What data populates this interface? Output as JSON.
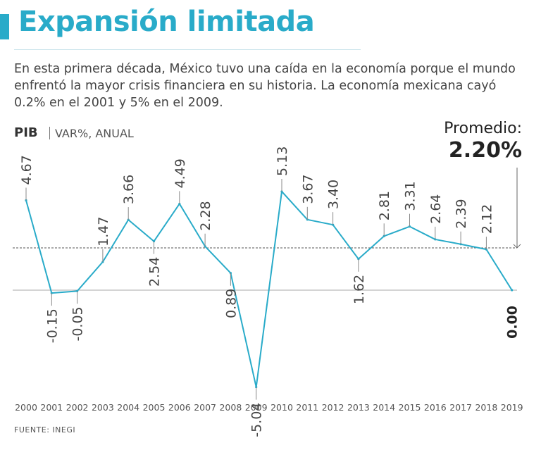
{
  "header": {
    "title": "Expansión limitada",
    "subtitle": "En esta primera década, México tuvo una caída en la economía porque el mundo enfrentó la mayor crisis financiera en su historia. La economía mexicana cayó 0.2% en el 2001 y 5% en el 2009."
  },
  "indicator": {
    "name": "PIB",
    "unit": "VAR%, ANUAL"
  },
  "average": {
    "label": "Promedio:",
    "value_text": "2.20%"
  },
  "source": "FUENTE: INEGI",
  "colors": {
    "accent": "#29abc9",
    "line": "#29abc9",
    "text": "#333333"
  },
  "chart_data": {
    "type": "line",
    "title": "Expansión limitada",
    "ylabel": "VAR%, ANUAL",
    "categories": [
      "2000",
      "2001",
      "2002",
      "2003",
      "2004",
      "2005",
      "2006",
      "2007",
      "2008",
      "2009",
      "2010",
      "2011",
      "2012",
      "2013",
      "2014",
      "2015",
      "2016",
      "2017",
      "2018",
      "2019"
    ],
    "values": [
      4.67,
      -0.15,
      -0.05,
      1.47,
      3.66,
      2.54,
      4.49,
      2.28,
      0.89,
      -5.04,
      5.13,
      3.67,
      3.4,
      1.62,
      2.81,
      3.31,
      2.64,
      2.39,
      2.12,
      0.0
    ],
    "labels": [
      "4.67",
      "-0.15",
      "-0.05",
      "1.47",
      "3.66",
      "2.54",
      "4.49",
      "2.28",
      "0.89",
      "-5.04",
      "5.13",
      "3.67",
      "3.40",
      "1.62",
      "2.81",
      "3.31",
      "2.64",
      "2.39",
      "2.12",
      "0.00"
    ],
    "label_position": [
      "above",
      "below",
      "below",
      "above",
      "above",
      "below",
      "above",
      "above",
      "below",
      "below",
      "above",
      "above",
      "above",
      "below",
      "above",
      "above",
      "above",
      "above",
      "above",
      "below"
    ],
    "reference_lines": [
      {
        "name": "Promedio",
        "value": 2.2,
        "style": "dashed"
      },
      {
        "name": "zero",
        "value": 0,
        "style": "solid"
      }
    ],
    "ylim": [
      -5.04,
      5.13
    ],
    "grid": false,
    "legend": "none"
  }
}
